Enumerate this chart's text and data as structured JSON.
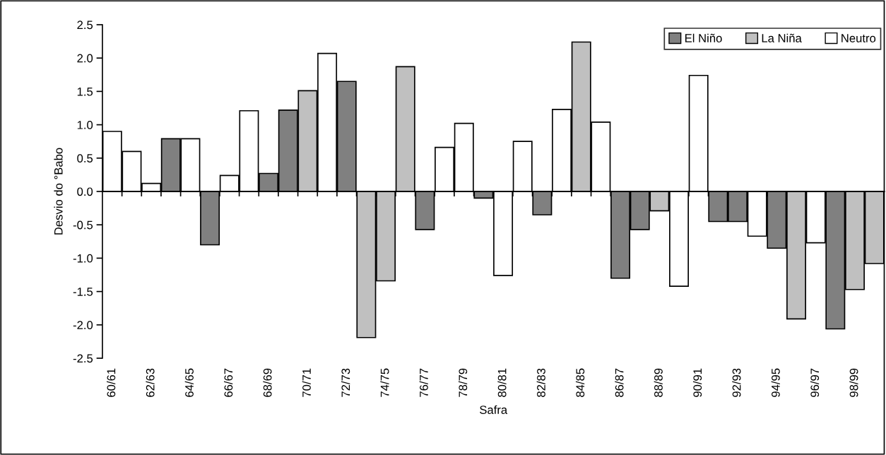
{
  "chart_data": {
    "type": "bar",
    "xlabel": "Safra",
    "ylabel": "Desvio do °Babo",
    "categories": [
      "60/61",
      null,
      "62/63",
      null,
      "64/65",
      null,
      "66/67",
      null,
      "68/69",
      null,
      "70/71",
      null,
      "72/73",
      null,
      "74/75",
      null,
      "76/77",
      null,
      "78/79",
      null,
      "80/81",
      null,
      "82/83",
      null,
      "84/85",
      null,
      "86/87",
      null,
      "88/89",
      null,
      "90/91",
      null,
      "92/93",
      null,
      "94/95",
      null,
      "96/97",
      null,
      "98/99",
      null
    ],
    "series": [
      {
        "name": "El Niño",
        "color": "#808080",
        "values": [
          null,
          null,
          null,
          0.79,
          null,
          -0.8,
          null,
          null,
          0.27,
          1.22,
          null,
          null,
          1.65,
          null,
          null,
          null,
          -0.57,
          null,
          null,
          -0.1,
          null,
          null,
          -0.35,
          null,
          null,
          null,
          -1.3,
          -0.57,
          null,
          null,
          null,
          -0.45,
          -0.45,
          null,
          -0.85,
          null,
          null,
          -2.06,
          null,
          null
        ]
      },
      {
        "name": "La Niña",
        "color": "#c0c0c0",
        "values": [
          null,
          null,
          null,
          null,
          null,
          null,
          null,
          null,
          null,
          null,
          1.51,
          null,
          null,
          -2.19,
          -1.34,
          1.87,
          null,
          null,
          null,
          null,
          null,
          null,
          null,
          null,
          2.24,
          null,
          null,
          null,
          -0.29,
          null,
          null,
          null,
          null,
          null,
          null,
          -1.91,
          null,
          null,
          -1.47,
          -1.08
        ]
      },
      {
        "name": "Neutro",
        "color": "#ffffff",
        "values": [
          0.9,
          0.6,
          0.12,
          null,
          0.79,
          null,
          0.24,
          1.21,
          null,
          null,
          null,
          2.07,
          null,
          null,
          null,
          null,
          null,
          0.66,
          1.02,
          null,
          -1.26,
          0.75,
          null,
          1.23,
          null,
          1.04,
          null,
          null,
          null,
          -1.42,
          1.74,
          null,
          null,
          -0.67,
          null,
          null,
          -0.77,
          null,
          null,
          null
        ]
      }
    ],
    "ylim": [
      -2.5,
      2.5
    ],
    "yticks": [
      {
        "value": -2.5,
        "label": "-2.5"
      },
      {
        "value": -2.0,
        "label": "-2.0"
      },
      {
        "value": -1.5,
        "label": "-1.5"
      },
      {
        "value": -1.0,
        "label": "-1.0"
      },
      {
        "value": -0.5,
        "label": "-0.5"
      },
      {
        "value": 0.0,
        "label": "0.0"
      },
      {
        "value": 0.5,
        "label": "0.5"
      },
      {
        "value": 1.0,
        "label": "1.0"
      },
      {
        "value": 1.5,
        "label": "1.5"
      },
      {
        "value": 2.0,
        "label": "2.0"
      },
      {
        "value": 2.5,
        "label": "2.5"
      }
    ],
    "legend": "top right"
  }
}
